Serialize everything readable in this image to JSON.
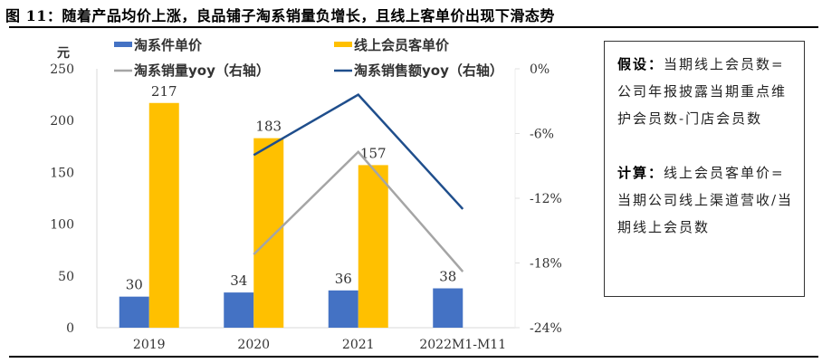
{
  "title": "图 11：随着产品均价上涨，良品铺子淘系销量负增长，且线上客单价出现下滑态势",
  "note": {
    "assume_label": "假设：",
    "assume_text": "当期线上会员数=公司年报披露当期重点维护会员数-门店会员数",
    "calc_label": "计算：",
    "calc_text": "线上会员客单价=当期公司线上渠道营收/当期线上会员数"
  },
  "colors": {
    "blue_bar": "#4472C4",
    "yellow_bar": "#FFC000",
    "gray_line": "#A5A5A5",
    "navy_line": "#1F4E8C"
  },
  "chart_data": {
    "type": "bar",
    "title": "",
    "ylabel": "元",
    "ylim": [
      0,
      250
    ],
    "yticks": [
      "0",
      "50",
      "100",
      "150",
      "200",
      "250"
    ],
    "y2lim": [
      -24,
      0
    ],
    "y2ticks": [
      "-24%",
      "-18%",
      "-12%",
      "-6%",
      "0%"
    ],
    "categories": [
      "2019",
      "2020",
      "2021",
      "2022M1-M11"
    ],
    "legend_position": "top",
    "series": [
      {
        "name": "淘系件单价",
        "type": "bar",
        "axis": "left",
        "values": [
          30,
          34,
          36,
          38
        ],
        "labels": [
          "30",
          "34",
          "36",
          "38"
        ]
      },
      {
        "name": "线上会员客单价",
        "type": "bar",
        "axis": "left",
        "values": [
          217,
          183,
          157,
          null
        ],
        "labels": [
          "217",
          "183",
          "157",
          ""
        ]
      },
      {
        "name": "淘系销量yoy（右轴）",
        "type": "line",
        "axis": "right",
        "values": [
          null,
          -17.2,
          -7.7,
          -18.8
        ]
      },
      {
        "name": "淘系销售额yoy（右轴）",
        "type": "line",
        "axis": "right",
        "values": [
          null,
          -8.0,
          -2.4,
          -13.0
        ]
      }
    ]
  }
}
